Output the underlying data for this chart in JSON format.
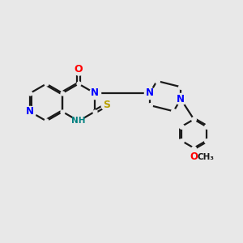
{
  "background_color": "#e8e8e8",
  "bond_color": "#1a1a1a",
  "N_color": "#0000ff",
  "O_color": "#ff0000",
  "S_color": "#b8a000",
  "NH_color": "#008080",
  "figsize": [
    3.0,
    3.0
  ],
  "dpi": 100,
  "xlim": [
    0,
    10
  ],
  "ylim": [
    0,
    10
  ]
}
